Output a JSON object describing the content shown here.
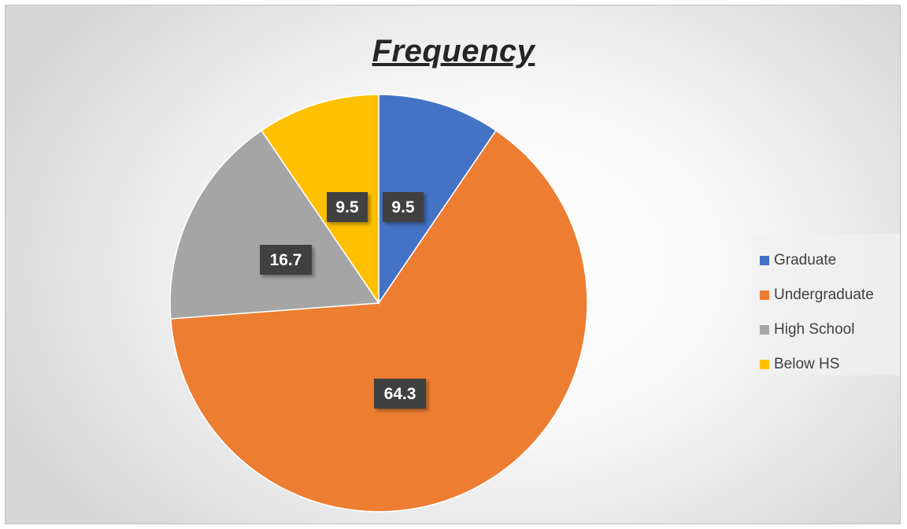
{
  "chart_data": {
    "type": "pie",
    "title": "Frequency",
    "categories": [
      "Graduate",
      "Undergraduate",
      "High School",
      "Below HS"
    ],
    "values": [
      9.5,
      64.3,
      16.7,
      9.5
    ],
    "colors": [
      "#4472C4",
      "#ED7D31",
      "#A5A5A5",
      "#FFC000"
    ],
    "data_labels": [
      "9.5",
      "64.3",
      "16.7",
      "9.5"
    ],
    "legend_position": "right",
    "start_angle": "12 o'clock",
    "direction": "clockwise"
  }
}
